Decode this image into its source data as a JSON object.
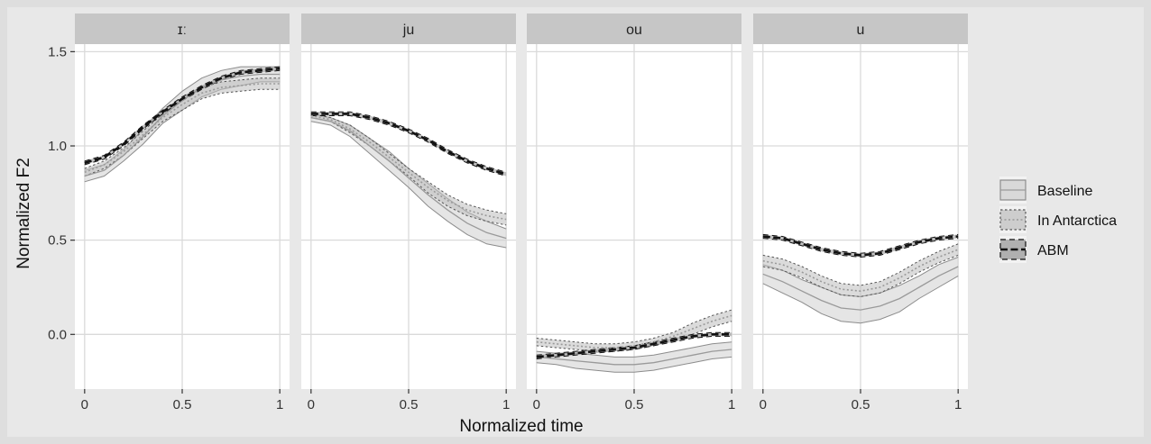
{
  "chart_data": {
    "type": "line",
    "xlabel": "Normalized time",
    "ylabel": "Normalized F2",
    "x": [
      0,
      0.1,
      0.2,
      0.3,
      0.4,
      0.5,
      0.6,
      0.7,
      0.8,
      0.9,
      1
    ],
    "xlim": [
      -0.05,
      1.05
    ],
    "ylim": [
      -0.29,
      1.54
    ],
    "xticks": [
      0,
      0.5,
      1
    ],
    "xtick_labels": [
      "0",
      "0.5",
      "1"
    ],
    "yticks": [
      0,
      0.5,
      1,
      1.5
    ],
    "ytick_labels": [
      "0.0",
      "0.5",
      "1.0",
      "1.5"
    ],
    "grid": true,
    "legend_position": "right",
    "legend": [
      {
        "label": "Baseline",
        "style": "solid"
      },
      {
        "label": "In Antarctica",
        "style": "dotted"
      },
      {
        "label": "ABM",
        "style": "dashed"
      }
    ],
    "panels": [
      {
        "strip": "ɪː",
        "series": [
          {
            "name": "Baseline",
            "values": [
              0.84,
              0.87,
              0.95,
              1.05,
              1.16,
              1.24,
              1.31,
              1.35,
              1.37,
              1.38,
              1.38
            ],
            "band": [
              0.03,
              0.03,
              0.03,
              0.04,
              0.04,
              0.05,
              0.05,
              0.05,
              0.05,
              0.04,
              0.04
            ]
          },
          {
            "name": "In Antarctica",
            "values": [
              0.86,
              0.9,
              0.97,
              1.06,
              1.15,
              1.22,
              1.28,
              1.31,
              1.32,
              1.33,
              1.33
            ],
            "band": [
              0.02,
              0.02,
              0.02,
              0.02,
              0.02,
              0.03,
              0.03,
              0.03,
              0.03,
              0.03,
              0.03
            ]
          },
          {
            "name": "ABM",
            "values": [
              0.91,
              0.94,
              1.01,
              1.1,
              1.18,
              1.25,
              1.31,
              1.36,
              1.39,
              1.4,
              1.41
            ],
            "band": [
              0.01,
              0.01,
              0.01,
              0.01,
              0.01,
              0.01,
              0.01,
              0.01,
              0.01,
              0.01,
              0.01
            ]
          }
        ]
      },
      {
        "strip": "ju",
        "series": [
          {
            "name": "Baseline",
            "values": [
              1.15,
              1.13,
              1.08,
              1.0,
              0.92,
              0.83,
              0.74,
              0.66,
              0.59,
              0.54,
              0.51
            ],
            "band": [
              0.02,
              0.02,
              0.03,
              0.04,
              0.05,
              0.05,
              0.06,
              0.06,
              0.06,
              0.06,
              0.05
            ]
          },
          {
            "name": "In Antarctica",
            "values": [
              1.16,
              1.14,
              1.09,
              1.02,
              0.94,
              0.86,
              0.78,
              0.71,
              0.66,
              0.63,
              0.61
            ],
            "band": [
              0.01,
              0.01,
              0.02,
              0.02,
              0.02,
              0.02,
              0.03,
              0.03,
              0.03,
              0.03,
              0.03
            ]
          },
          {
            "name": "ABM",
            "values": [
              1.17,
              1.17,
              1.17,
              1.15,
              1.12,
              1.08,
              1.03,
              0.97,
              0.92,
              0.88,
              0.85
            ],
            "band": [
              0.01,
              0.01,
              0.01,
              0.01,
              0.01,
              0.01,
              0.01,
              0.01,
              0.01,
              0.01,
              0.01
            ]
          }
        ]
      },
      {
        "strip": "ou",
        "series": [
          {
            "name": "Baseline",
            "values": [
              -0.12,
              -0.13,
              -0.14,
              -0.15,
              -0.16,
              -0.16,
              -0.15,
              -0.13,
              -0.11,
              -0.09,
              -0.08
            ],
            "band": [
              0.03,
              0.03,
              0.04,
              0.04,
              0.04,
              0.04,
              0.04,
              0.04,
              0.04,
              0.04,
              0.04
            ]
          },
          {
            "name": "In Antarctica",
            "values": [
              -0.04,
              -0.05,
              -0.06,
              -0.07,
              -0.07,
              -0.06,
              -0.04,
              -0.01,
              0.03,
              0.07,
              0.1
            ],
            "band": [
              0.02,
              0.02,
              0.02,
              0.02,
              0.02,
              0.02,
              0.02,
              0.02,
              0.03,
              0.03,
              0.03
            ]
          },
          {
            "name": "ABM",
            "values": [
              -0.12,
              -0.11,
              -0.1,
              -0.09,
              -0.08,
              -0.07,
              -0.05,
              -0.03,
              -0.01,
              0.0,
              0.0
            ],
            "band": [
              0.01,
              0.01,
              0.01,
              0.01,
              0.01,
              0.01,
              0.01,
              0.01,
              0.01,
              0.01,
              0.01
            ]
          }
        ]
      },
      {
        "strip": "u",
        "series": [
          {
            "name": "Baseline",
            "values": [
              0.32,
              0.28,
              0.23,
              0.18,
              0.14,
              0.13,
              0.15,
              0.19,
              0.25,
              0.31,
              0.36
            ],
            "band": [
              0.05,
              0.06,
              0.06,
              0.07,
              0.07,
              0.07,
              0.07,
              0.07,
              0.06,
              0.06,
              0.05
            ]
          },
          {
            "name": "In Antarctica",
            "values": [
              0.39,
              0.37,
              0.33,
              0.28,
              0.24,
              0.23,
              0.25,
              0.3,
              0.36,
              0.41,
              0.45
            ],
            "band": [
              0.03,
              0.03,
              0.03,
              0.03,
              0.03,
              0.03,
              0.03,
              0.03,
              0.03,
              0.03,
              0.03
            ]
          },
          {
            "name": "ABM",
            "values": [
              0.52,
              0.51,
              0.48,
              0.45,
              0.43,
              0.42,
              0.43,
              0.46,
              0.49,
              0.51,
              0.52
            ],
            "band": [
              0.01,
              0.01,
              0.01,
              0.01,
              0.01,
              0.01,
              0.01,
              0.01,
              0.01,
              0.01,
              0.01
            ]
          }
        ]
      }
    ]
  }
}
